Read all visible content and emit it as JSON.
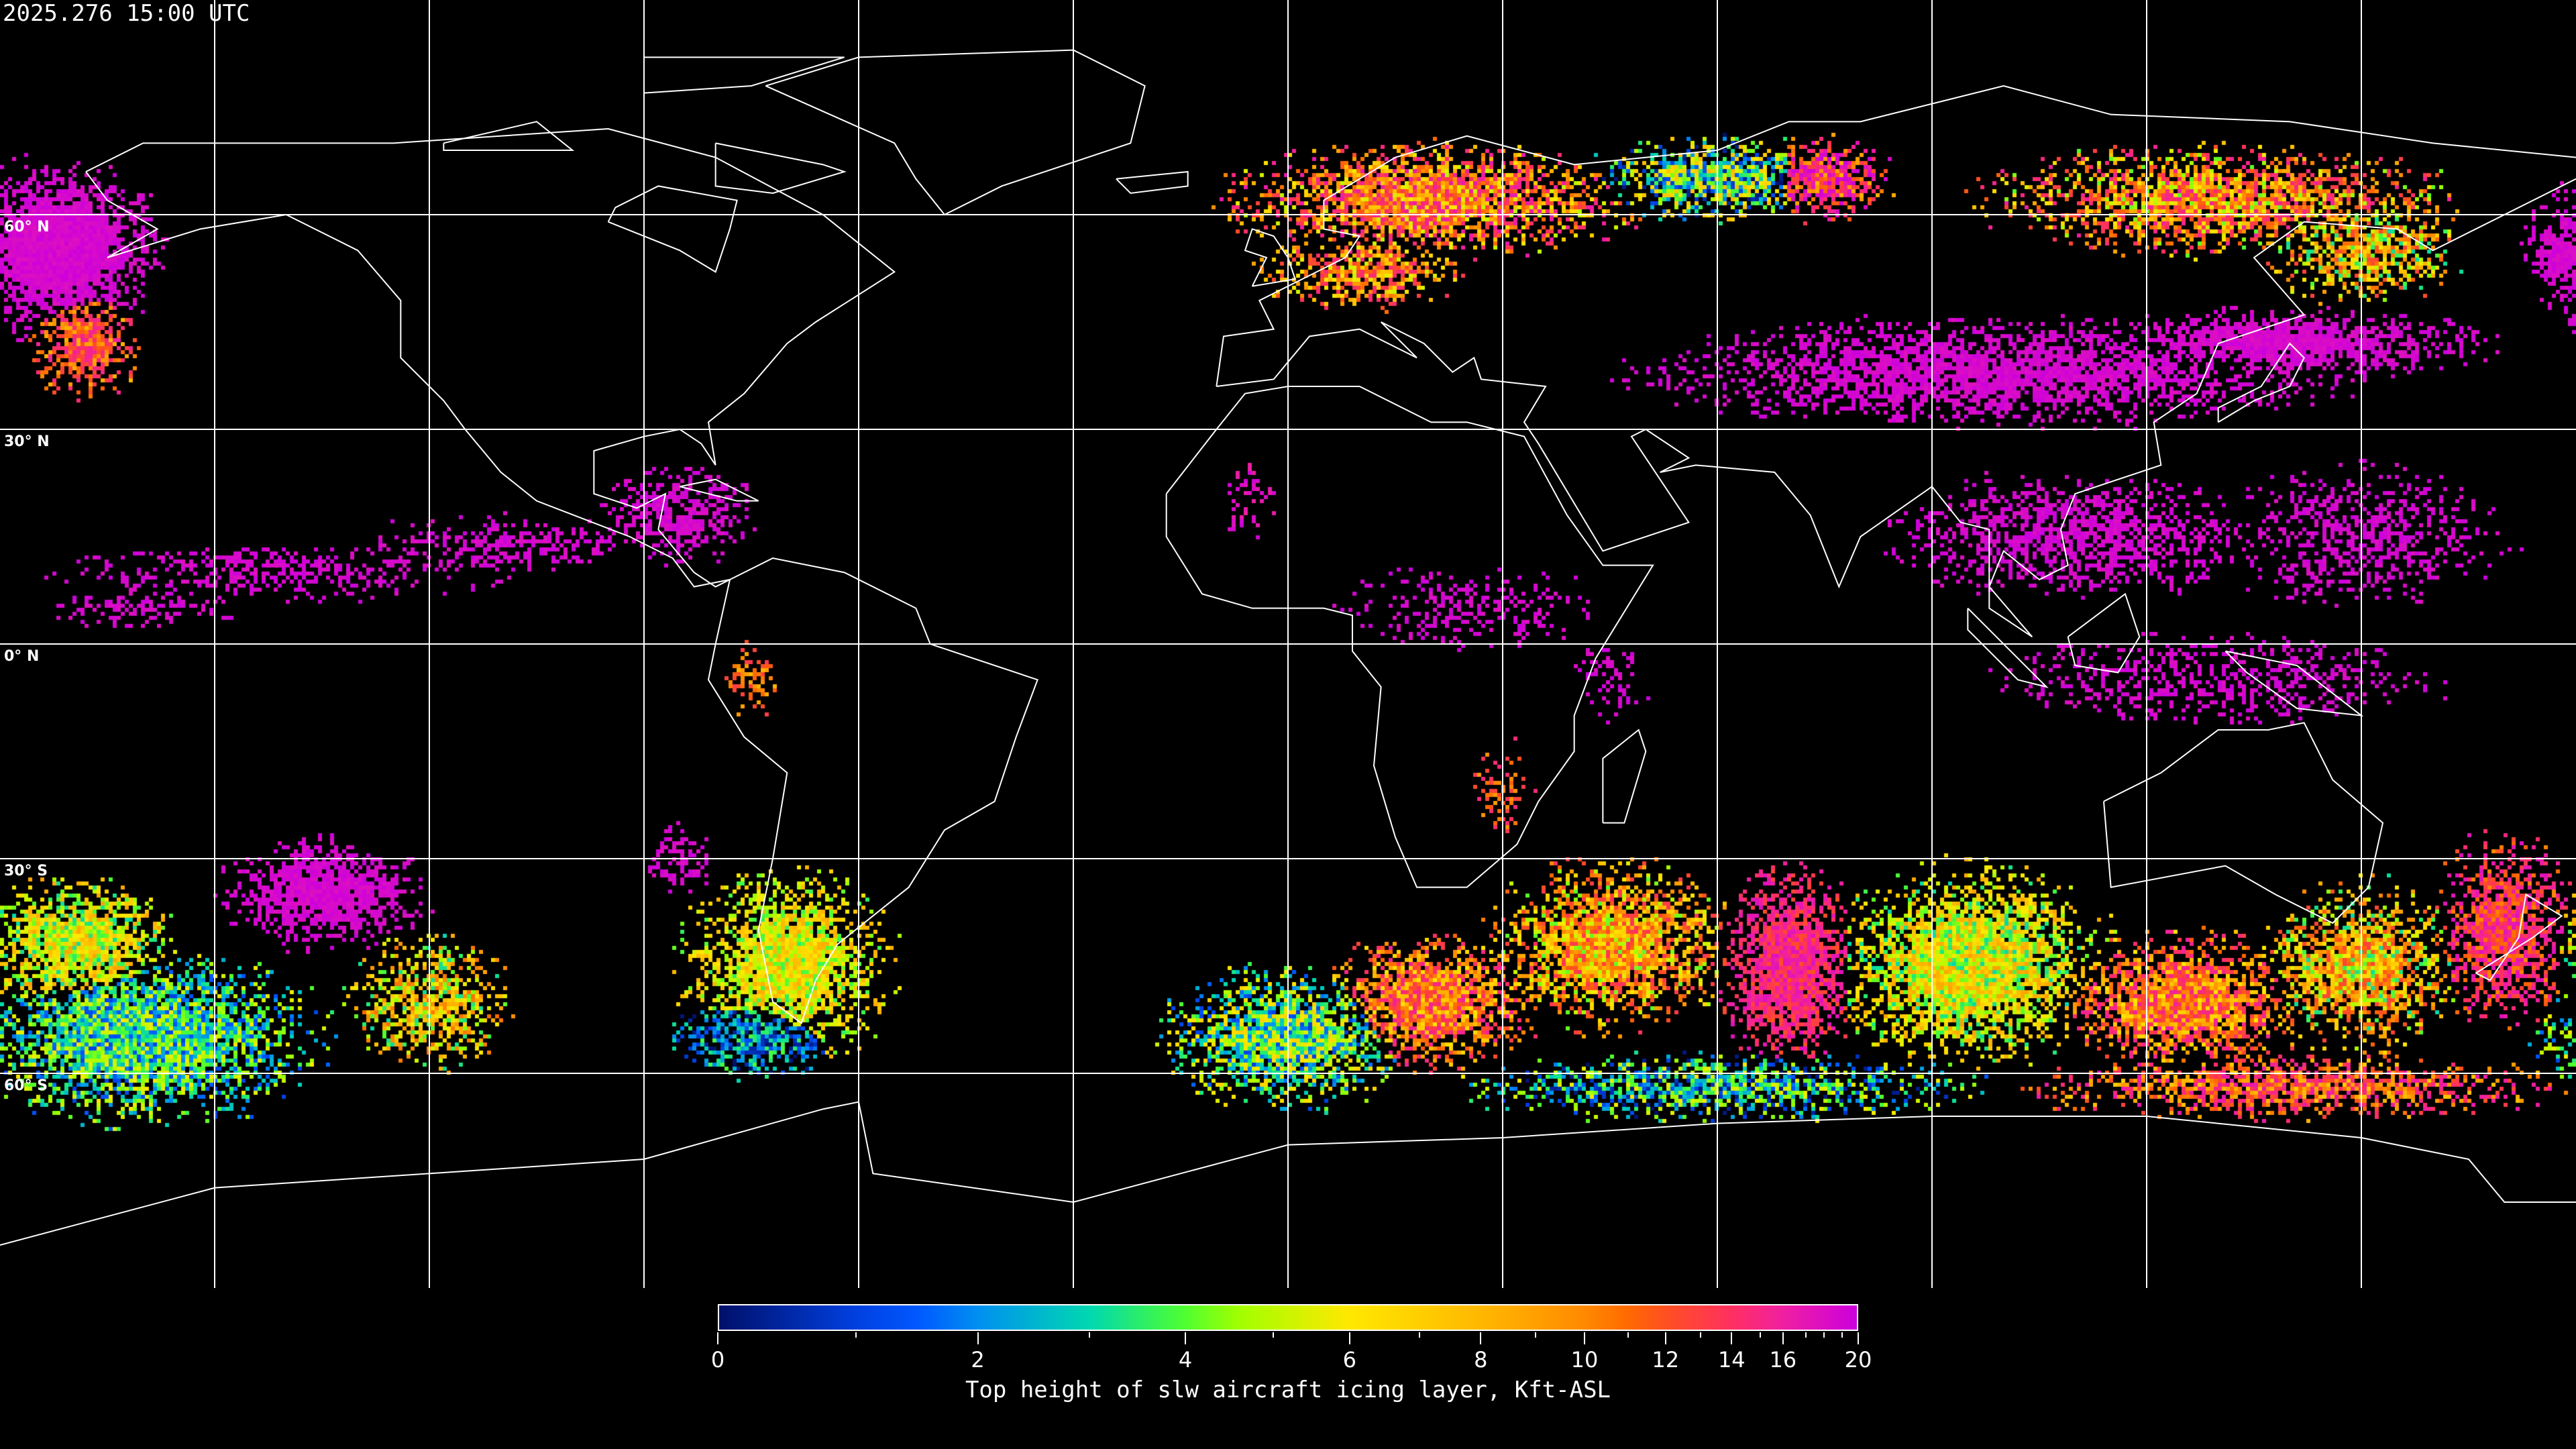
{
  "header": {
    "timestamp": "2025.276 15:00 UTC"
  },
  "map": {
    "projection": "equirectangular",
    "lon_range": [
      -180,
      180
    ],
    "lat_range": [
      -90,
      90
    ],
    "grid_lons": [
      -150,
      -120,
      -90,
      -60,
      -30,
      0,
      30,
      60,
      90,
      120,
      150
    ],
    "grid_lats": [
      60,
      30,
      0,
      -30,
      -60
    ],
    "lat_labels": [
      "60° N",
      "30° N",
      "0° N",
      "30° S",
      "60° S"
    ],
    "coastline_color": "#ffffff",
    "grid_color": "#ffffff",
    "background_color": "#000000"
  },
  "colorbar": {
    "title": "Top height of slw aircraft icing layer, Kft-ASL",
    "range": [
      0,
      20
    ],
    "tick_labels": [
      "0",
      "2",
      "4",
      "6",
      "8",
      "10",
      "12",
      "14",
      "16",
      "20"
    ],
    "major_ticks": [
      0,
      2,
      4,
      6,
      8,
      10,
      12,
      14,
      16,
      20
    ],
    "minor_ticks": [
      1,
      3,
      5,
      7,
      9,
      11,
      13,
      15,
      17,
      18,
      19
    ],
    "colormap": [
      {
        "value": 0,
        "color": "#00106a"
      },
      {
        "value": 1,
        "color": "#0040e0"
      },
      {
        "value": 1.5,
        "color": "#0058ff"
      },
      {
        "value": 2,
        "color": "#0090f0"
      },
      {
        "value": 3,
        "color": "#00d8b0"
      },
      {
        "value": 3.6,
        "color": "#30f060"
      },
      {
        "value": 4,
        "color": "#50ff30"
      },
      {
        "value": 4.6,
        "color": "#a0ff00"
      },
      {
        "value": 6,
        "color": "#ffe800"
      },
      {
        "value": 8,
        "color": "#ffb800"
      },
      {
        "value": 10,
        "color": "#ff8a00"
      },
      {
        "value": 11,
        "color": "#ff6a00"
      },
      {
        "value": 12,
        "color": "#ff5020"
      },
      {
        "value": 14,
        "color": "#ff3060"
      },
      {
        "value": 16,
        "color": "#f020a0"
      },
      {
        "value": 20,
        "color": "#cc00dd"
      }
    ]
  }
}
